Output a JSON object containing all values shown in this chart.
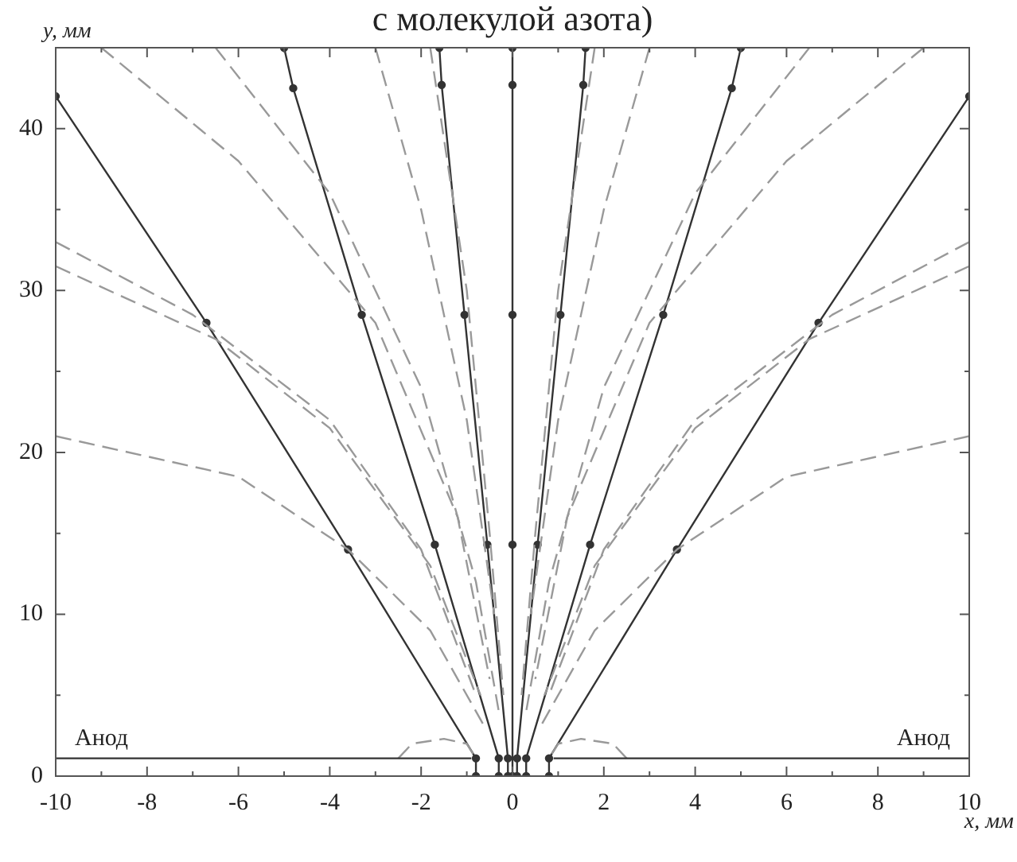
{
  "chart_data": {
    "type": "line",
    "title": "с молекулой азота)",
    "xlabel": "x, мм",
    "ylabel": "y, мм",
    "xlim": [
      -10,
      10
    ],
    "ylim": [
      0,
      45
    ],
    "xticks": [
      -10,
      {
        "value": -9,
        "label": null
      },
      -8,
      {
        "value": -7,
        "label": null
      },
      -6,
      {
        "value": -5,
        "label": null
      },
      -4,
      {
        "value": -3,
        "label": null
      },
      -2,
      {
        "value": -1,
        "label": null
      },
      0,
      {
        "value": 1,
        "label": null
      },
      2,
      {
        "value": 3,
        "label": null
      },
      4,
      {
        "value": 5,
        "label": null
      },
      6,
      {
        "value": 7,
        "label": null
      },
      8,
      {
        "value": 9,
        "label": null
      },
      10
    ],
    "yticks": [
      0,
      {
        "value": 5,
        "label": null
      },
      10,
      {
        "value": 15,
        "label": null
      },
      20,
      {
        "value": 25,
        "label": null
      },
      30,
      {
        "value": 35,
        "label": null
      },
      40
    ],
    "grid": false,
    "legend": false,
    "annotations": [
      "Анод",
      "Анод"
    ],
    "series": [
      {
        "color": "#333333",
        "line_style": "solid",
        "marker": "none",
        "x": [
          -10,
          -0.9
        ],
        "values": [
          1.1,
          1.1
        ]
      },
      {
        "color": "#333333",
        "line_style": "solid",
        "marker": "none",
        "x": [
          0.9,
          10
        ],
        "values": [
          1.1,
          1.1
        ]
      },
      {
        "color": "#999999",
        "line_style": "dashed",
        "marker": "none",
        "x": [
          -10,
          -6,
          -3.6,
          -1.8,
          -0.6
        ],
        "values": [
          21,
          18.5,
          14,
          9,
          3
        ]
      },
      {
        "color": "#999999",
        "line_style": "dashed",
        "marker": "none",
        "x": [
          10,
          6,
          3.6,
          1.8,
          0.6
        ],
        "values": [
          21,
          18.5,
          14,
          9,
          3
        ]
      },
      {
        "color": "#999999",
        "line_style": "dashed",
        "marker": "none",
        "x": [
          -10,
          -7,
          -4,
          -2,
          -0.8
        ],
        "values": [
          33,
          28.5,
          22,
          14,
          5
        ]
      },
      {
        "color": "#999999",
        "line_style": "dashed",
        "marker": "none",
        "x": [
          10,
          7,
          4,
          2,
          0.8
        ],
        "values": [
          33,
          28.5,
          22,
          14,
          5
        ]
      },
      {
        "color": "#999999",
        "line_style": "dashed",
        "marker": "none",
        "x": [
          -10,
          -6.5,
          -4,
          -1.8,
          -0.7
        ],
        "values": [
          31.5,
          27,
          21.5,
          13,
          5
        ]
      },
      {
        "color": "#999999",
        "line_style": "dashed",
        "marker": "none",
        "x": [
          10,
          6.5,
          4,
          1.8,
          0.7
        ],
        "values": [
          31.5,
          27,
          21.5,
          13,
          5
        ]
      },
      {
        "color": "#999999",
        "line_style": "dashed",
        "marker": "none",
        "x": [
          -9,
          -6,
          -3,
          -1.2,
          -0.5
        ],
        "values": [
          45,
          38,
          28,
          16,
          6
        ]
      },
      {
        "color": "#999999",
        "line_style": "dashed",
        "marker": "none",
        "x": [
          9,
          6,
          3,
          1.2,
          0.5
        ],
        "values": [
          45,
          38,
          28,
          16,
          6
        ]
      },
      {
        "color": "#999999",
        "line_style": "dashed",
        "marker": "none",
        "x": [
          -6.5,
          -4,
          -2,
          -0.8,
          -0.3
        ],
        "values": [
          45,
          36,
          24,
          12,
          4
        ]
      },
      {
        "color": "#999999",
        "line_style": "dashed",
        "marker": "none",
        "x": [
          6.5,
          4,
          2,
          0.8,
          0.3
        ],
        "values": [
          45,
          36,
          24,
          12,
          4
        ]
      },
      {
        "color": "#999999",
        "line_style": "dashed",
        "marker": "none",
        "x": [
          -3,
          -2,
          -1,
          -0.4
        ],
        "values": [
          45,
          35,
          22,
          10
        ]
      },
      {
        "color": "#999999",
        "line_style": "dashed",
        "marker": "none",
        "x": [
          3,
          2,
          1,
          0.4
        ],
        "values": [
          45,
          35,
          22,
          10
        ]
      },
      {
        "color": "#999999",
        "line_style": "dashed",
        "marker": "none",
        "x": [
          -1.8,
          -1,
          -0.5,
          -0.2
        ],
        "values": [
          45,
          30,
          15,
          5
        ]
      },
      {
        "color": "#999999",
        "line_style": "dashed",
        "marker": "none",
        "x": [
          1.8,
          1,
          0.5,
          0.2
        ],
        "values": [
          45,
          30,
          15,
          5
        ]
      },
      {
        "color": "#999999",
        "line_style": "dashed",
        "marker": "none",
        "x": [
          -2.5,
          -2.2,
          -1.5,
          -1,
          -0.8
        ],
        "values": [
          1.1,
          2,
          2.3,
          2,
          1.1
        ]
      },
      {
        "color": "#999999",
        "line_style": "dashed",
        "marker": "none",
        "x": [
          2.5,
          2.2,
          1.5,
          1,
          0.8
        ],
        "values": [
          1.1,
          2,
          2.3,
          2,
          1.1
        ]
      },
      {
        "color": "#333333",
        "line_style": "solid",
        "marker": "circle",
        "x": [
          -0.8,
          -0.8,
          -3.6,
          -6.7,
          -10
        ],
        "values": [
          0,
          1.1,
          14,
          28,
          42
        ]
      },
      {
        "color": "#333333",
        "line_style": "solid",
        "marker": "circle",
        "x": [
          0.8,
          0.8,
          3.6,
          6.7,
          10
        ],
        "values": [
          0,
          1.1,
          14,
          28,
          42
        ]
      },
      {
        "color": "#333333",
        "line_style": "solid",
        "marker": "circle",
        "x": [
          -0.3,
          -0.3,
          -1.7,
          -3.3,
          -4.8,
          -5
        ],
        "values": [
          0,
          1.1,
          14.3,
          28.5,
          42.5,
          45
        ]
      },
      {
        "color": "#333333",
        "line_style": "solid",
        "marker": "circle",
        "x": [
          0.3,
          0.3,
          1.7,
          3.3,
          4.8,
          5
        ],
        "values": [
          0,
          1.1,
          14.3,
          28.5,
          42.5,
          45
        ]
      },
      {
        "color": "#333333",
        "line_style": "solid",
        "marker": "circle",
        "x": [
          -0.1,
          -0.1,
          -0.55,
          -1.05,
          -1.55,
          -1.6
        ],
        "values": [
          0,
          1.1,
          14.3,
          28.5,
          42.7,
          45
        ]
      },
      {
        "color": "#333333",
        "line_style": "solid",
        "marker": "circle",
        "x": [
          0.1,
          0.1,
          0.55,
          1.05,
          1.55,
          1.6
        ],
        "values": [
          0,
          1.1,
          14.3,
          28.5,
          42.7,
          45
        ]
      },
      {
        "color": "#333333",
        "line_style": "solid",
        "marker": "circle",
        "x": [
          0,
          0,
          0,
          0,
          0
        ],
        "values": [
          0,
          14.3,
          28.5,
          42.7,
          45
        ]
      }
    ]
  }
}
